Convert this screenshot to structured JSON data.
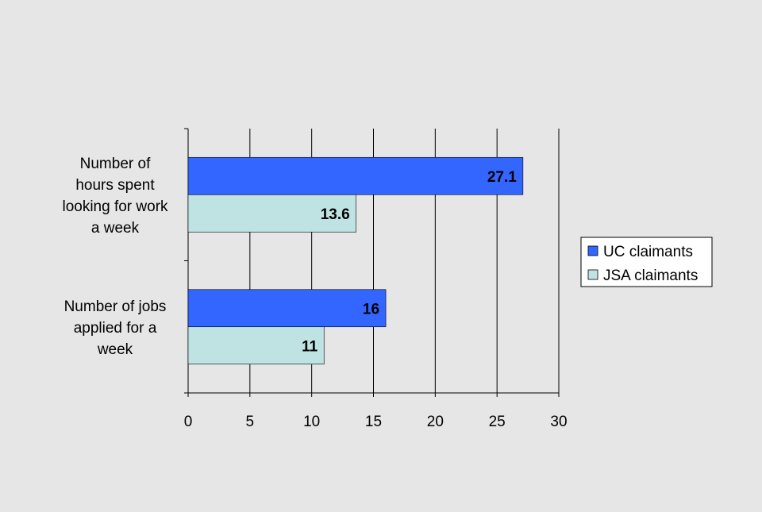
{
  "chart_data": {
    "type": "bar",
    "orientation": "horizontal",
    "categories": [
      [
        "Number of",
        "hours spent",
        "looking for work",
        "a week"
      ],
      [
        "Number of jobs",
        "applied for a",
        "week"
      ]
    ],
    "series": [
      {
        "name": "UC claimants",
        "values": [
          27.1,
          16
        ],
        "labels": [
          "27.1",
          "16"
        ],
        "color": "#3366ff"
      },
      {
        "name": "JSA claimants",
        "values": [
          13.6,
          11
        ],
        "labels": [
          "13.6",
          "11"
        ],
        "color": "#bfe3e3"
      }
    ],
    "xlim": [
      0,
      30
    ],
    "xticks": [
      0,
      5,
      10,
      15,
      20,
      25,
      30
    ],
    "grid": "vertical",
    "legend": "right",
    "background": "#e6e6e6",
    "plot_background": "#e6e6e6"
  }
}
